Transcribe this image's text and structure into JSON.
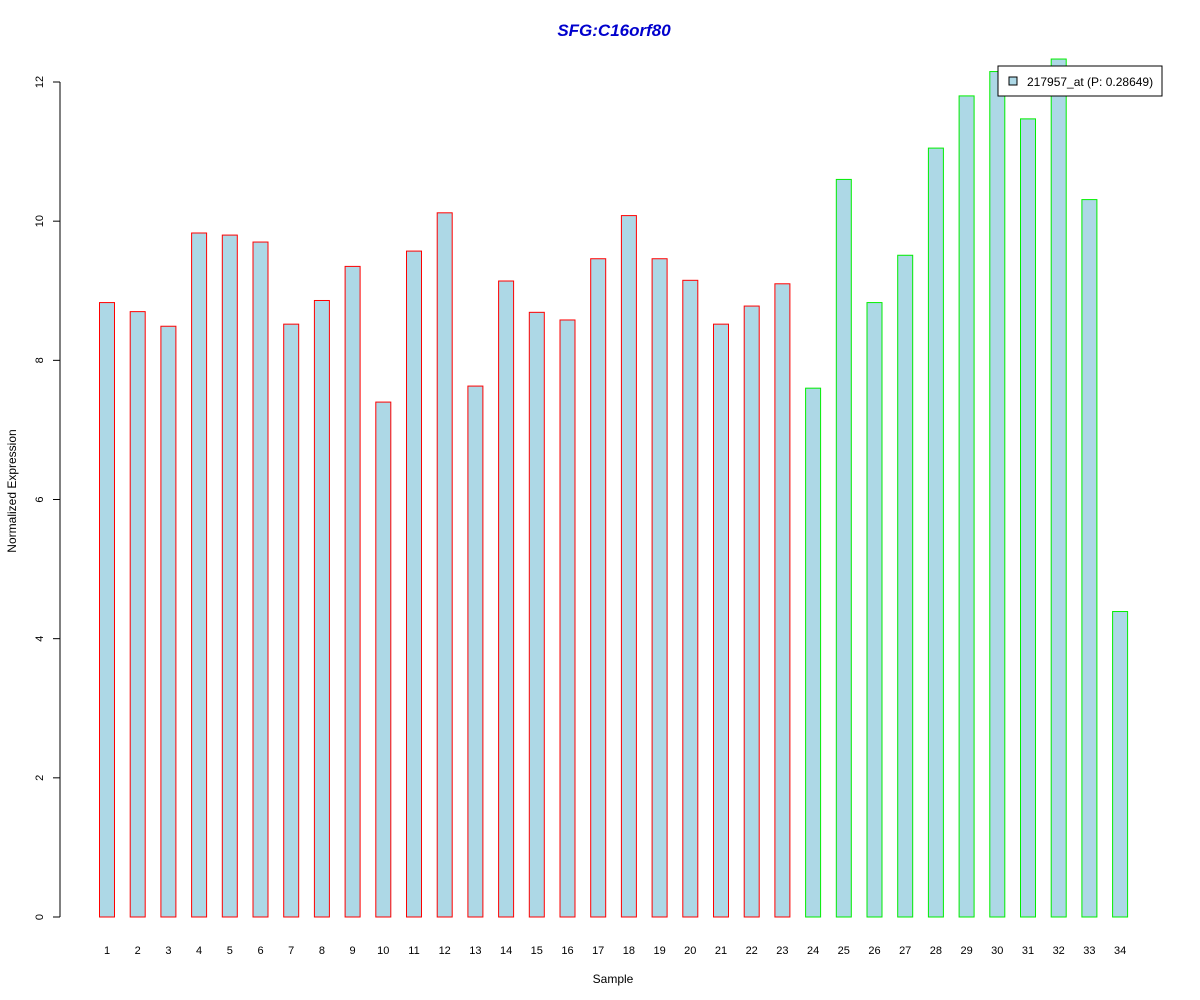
{
  "chart_data": {
    "type": "bar",
    "title": "SFG:C16orf80",
    "xlabel": "Sample",
    "ylabel": "Normalized Expression",
    "ylim": [
      0,
      12
    ],
    "yticks": [
      0,
      2,
      4,
      6,
      8,
      10,
      12
    ],
    "categories": [
      "1",
      "2",
      "3",
      "4",
      "5",
      "6",
      "7",
      "8",
      "9",
      "10",
      "11",
      "12",
      "13",
      "14",
      "15",
      "16",
      "17",
      "18",
      "19",
      "20",
      "21",
      "22",
      "23",
      "24",
      "25",
      "26",
      "27",
      "28",
      "29",
      "30",
      "31",
      "32",
      "33",
      "34"
    ],
    "series": [
      {
        "name": "217957_at (P: 0.28649)",
        "values": [
          8.83,
          8.7,
          8.49,
          9.83,
          9.8,
          9.7,
          8.52,
          8.86,
          9.35,
          7.4,
          9.57,
          10.12,
          7.63,
          9.14,
          8.69,
          8.58,
          9.46,
          10.08,
          9.46,
          9.15,
          8.52,
          8.78,
          9.1,
          7.6,
          10.6,
          8.83,
          9.51,
          11.05,
          11.8,
          12.15,
          11.47,
          12.33,
          10.31,
          4.39
        ]
      }
    ],
    "groups": [
      {
        "from": 1,
        "to": 23,
        "border_color": "#ff0000"
      },
      {
        "from": 24,
        "to": 34,
        "border_color": "#00ee00"
      }
    ],
    "bar_fill": "#add8e6",
    "title_color": "#0000cd",
    "grid": false,
    "legend_position": "top-right"
  }
}
